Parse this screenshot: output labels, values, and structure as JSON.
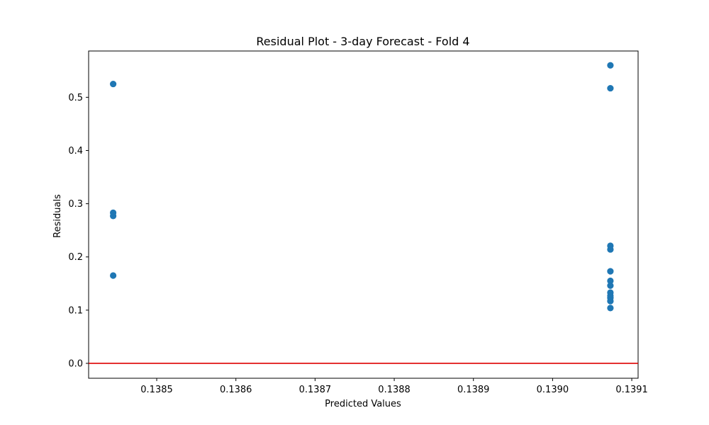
{
  "chart_data": {
    "type": "scatter",
    "title": "Residual Plot - 3-day Forecast - Fold 4",
    "xlabel": "Predicted Values",
    "ylabel": "Residuals",
    "xlim": [
      0.138414,
      0.139108
    ],
    "ylim": [
      -0.028,
      0.587
    ],
    "x_ticks": [
      0.1385,
      0.1386,
      0.1387,
      0.1388,
      0.1389,
      0.139,
      0.1391
    ],
    "x_tick_labels": [
      "0.1385",
      "0.1386",
      "0.1387",
      "0.1388",
      "0.1389",
      "0.1390",
      "0.1391"
    ],
    "y_ticks": [
      0.0,
      0.1,
      0.2,
      0.3,
      0.4,
      0.5
    ],
    "y_tick_labels": [
      "0.0",
      "0.1",
      "0.2",
      "0.3",
      "0.4",
      "0.5"
    ],
    "grid": false,
    "reference_line": {
      "y": 0,
      "color": "#dd0000"
    },
    "marker_color": "#1f77b4",
    "points": [
      {
        "x": 0.138445,
        "y": 0.525
      },
      {
        "x": 0.138445,
        "y": 0.283
      },
      {
        "x": 0.138445,
        "y": 0.277
      },
      {
        "x": 0.138445,
        "y": 0.165
      },
      {
        "x": 0.139073,
        "y": 0.56
      },
      {
        "x": 0.139073,
        "y": 0.517
      },
      {
        "x": 0.139073,
        "y": 0.221
      },
      {
        "x": 0.139073,
        "y": 0.214
      },
      {
        "x": 0.139073,
        "y": 0.173
      },
      {
        "x": 0.139073,
        "y": 0.155
      },
      {
        "x": 0.139073,
        "y": 0.146
      },
      {
        "x": 0.139073,
        "y": 0.133
      },
      {
        "x": 0.139073,
        "y": 0.127
      },
      {
        "x": 0.139073,
        "y": 0.123
      },
      {
        "x": 0.139073,
        "y": 0.117
      },
      {
        "x": 0.139073,
        "y": 0.104
      }
    ]
  }
}
